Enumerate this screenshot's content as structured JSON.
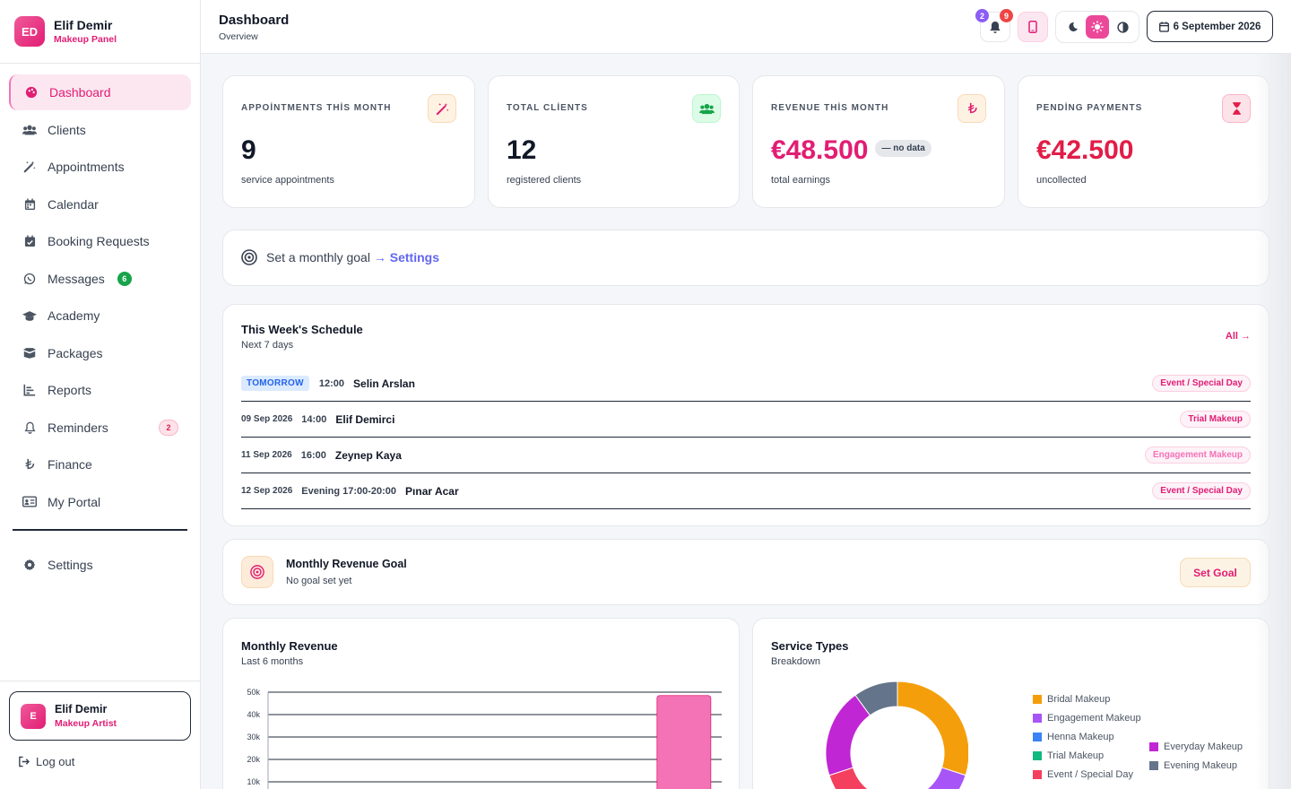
{
  "brand": {
    "initials": "ED",
    "name": "Elif Demir",
    "subtitle": "Makeup Panel"
  },
  "nav": {
    "items": [
      {
        "label": "Dashboard",
        "icon": "palette-icon",
        "active": true
      },
      {
        "label": "Clients",
        "icon": "users-icon"
      },
      {
        "label": "Appointments",
        "icon": "wand-icon"
      },
      {
        "label": "Calendar",
        "icon": "calendar-icon"
      },
      {
        "label": "Booking Requests",
        "icon": "calendar-check-icon"
      },
      {
        "label": "Messages",
        "icon": "whatsapp-icon",
        "badge": "6"
      },
      {
        "label": "Academy",
        "icon": "graduation-cap-icon"
      },
      {
        "label": "Packages",
        "icon": "box-icon"
      },
      {
        "label": "Reports",
        "icon": "chart-icon"
      },
      {
        "label": "Reminders",
        "icon": "bell-icon",
        "badge": "2"
      },
      {
        "label": "Finance",
        "icon": "lira-icon"
      },
      {
        "label": "My Portal",
        "icon": "id-card-icon"
      }
    ],
    "settings_label": "Settings"
  },
  "profile": {
    "initial": "E",
    "name": "Elif Demir",
    "role": "Makeup Artist",
    "logout_label": "Log out"
  },
  "header": {
    "title": "Dashboard",
    "subtitle": "Overview",
    "badge_purple": "2",
    "badge_red": "9",
    "date_label": "6 September 2026"
  },
  "stats": [
    {
      "label": "APPOİNTMENTS THİS MONTH",
      "value": "9",
      "caption": "service appointments",
      "icon": "wand-icon",
      "color": "#111827"
    },
    {
      "label": "TOTAL CLİENTS",
      "value": "12",
      "caption": "registered clients",
      "icon": "users-icon",
      "color": "#111827"
    },
    {
      "label": "REVENUE THİS MONTH",
      "value": "€48.500",
      "caption": "total earnings",
      "icon": "lira-icon",
      "badge": "— no data",
      "color": "#e11d74"
    },
    {
      "label": "PENDİNG PAYMENTS",
      "value": "€42.500",
      "caption": "uncollected",
      "icon": "hourglass-icon",
      "color": "#e11d48"
    }
  ],
  "goal_banner": {
    "text": "Set a monthly goal",
    "link": "→ Settings"
  },
  "schedule": {
    "title": "This Week's Schedule",
    "subtitle": "Next 7 days",
    "all_link": "All →",
    "rows": [
      {
        "date": "TOMORROW",
        "time": "12:00",
        "name": "Selin Arslan",
        "tag": "Event / Special Day"
      },
      {
        "date": "09 Sep 2026",
        "time": "14:00",
        "name": "Elif Demirci",
        "tag": "Trial Makeup"
      },
      {
        "date": "11 Sep 2026",
        "time": "16:00",
        "name": "Zeynep Kaya",
        "tag": "Engagement Makeup"
      },
      {
        "date": "12 Sep 2026",
        "time": "Evening 17:00-20:00",
        "name": "Pınar Acar",
        "tag": "Event / Special Day"
      }
    ]
  },
  "revenue_goal": {
    "title": "Monthly Revenue Goal",
    "subtitle": "No goal set yet",
    "button": "Set Goal"
  },
  "monthly_revenue": {
    "title": "Monthly Revenue",
    "subtitle": "Last 6 months"
  },
  "service_types": {
    "title": "Service Types",
    "subtitle": "Breakdown",
    "legend": [
      {
        "label": "Bridal Makeup",
        "color": "#f59e0b"
      },
      {
        "label": "Engagement Makeup",
        "color": "#a855f7"
      },
      {
        "label": "Henna Makeup",
        "color": "#3b82f6"
      },
      {
        "label": "Trial Makeup",
        "color": "#10b981"
      },
      {
        "label": "Event / Special Day",
        "color": "#f43f5e"
      },
      {
        "label": "Everyday Makeup",
        "color": "#c026d3"
      },
      {
        "label": "Evening Makeup",
        "color": "#64748b"
      }
    ]
  },
  "chart_data": [
    {
      "type": "bar",
      "title": "Monthly Revenue",
      "subtitle": "Last 6 months",
      "y_ticks": [
        "50k",
        "40k",
        "30k",
        "20k",
        "10k"
      ],
      "ylim": [
        0,
        50000
      ],
      "values": [
        0,
        0,
        0,
        0,
        0,
        48500
      ],
      "bar_color": "#f472b6",
      "grid": true
    },
    {
      "type": "pie",
      "title": "Service Types",
      "subtitle": "Breakdown",
      "labels": [
        "Bridal Makeup",
        "Engagement Makeup",
        "Henna Makeup",
        "Trial Makeup",
        "Event / Special Day",
        "Everyday Makeup",
        "Evening Makeup"
      ],
      "values": [
        3,
        1,
        1,
        1,
        1,
        2,
        1
      ],
      "colors": [
        "#f59e0b",
        "#a855f7",
        "#3b82f6",
        "#10b981",
        "#f43f5e",
        "#c026d3",
        "#64748b"
      ],
      "donut": true
    }
  ]
}
